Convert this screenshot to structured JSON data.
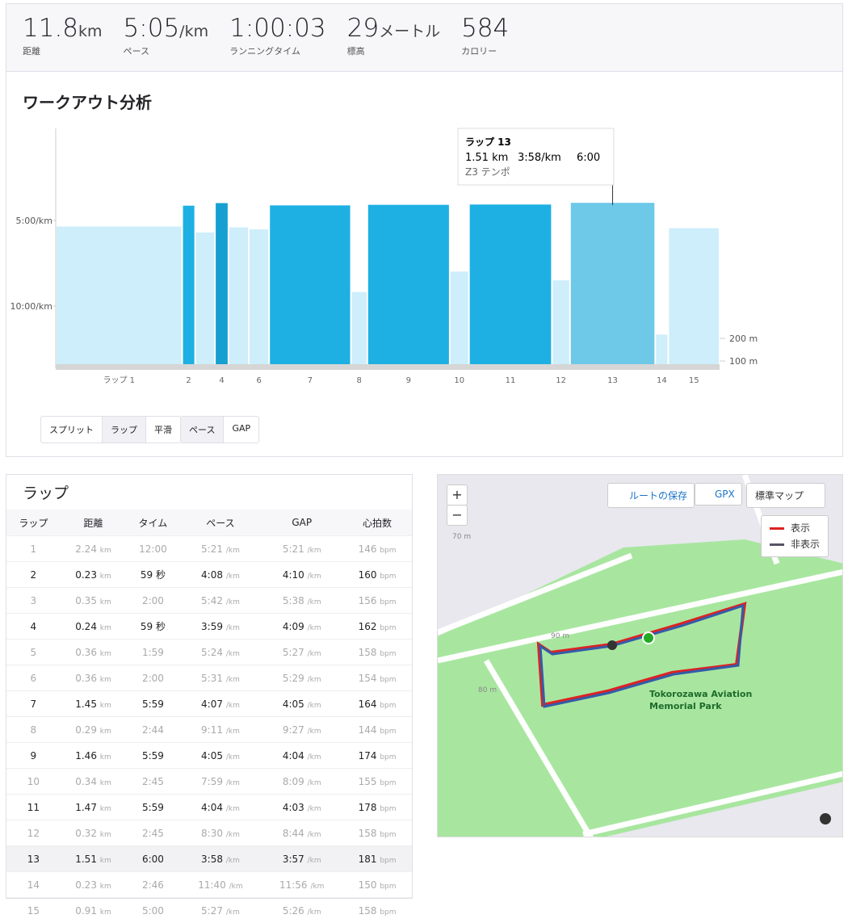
{
  "stats": [
    {
      "value": "11.8",
      "unit": "km",
      "label": "距離"
    },
    {
      "value": "5:05",
      "unit": "/km",
      "label": "ペース"
    },
    {
      "value": "1:00:03",
      "label": "ランニングタイム"
    },
    {
      "value": "29",
      "unit": "メートル",
      "label": "標高"
    },
    {
      "value": "584",
      "label": "カロリー"
    }
  ],
  "analysis": {
    "title": "ワークアウト分析",
    "view_buttons": [
      "スプリット",
      "ラップ",
      "平滑"
    ],
    "metric_buttons": [
      "ペース",
      "GAP"
    ]
  },
  "chart_data": {
    "type": "bar",
    "categories": [
      "ラップ 1",
      "2",
      "3",
      "4",
      "5",
      "6",
      "7",
      "8",
      "9",
      "10",
      "11",
      "12",
      "13",
      "14",
      "15"
    ],
    "x_labels": [
      "ラップ 1",
      "2",
      null,
      "4",
      null,
      "6",
      "7",
      "8",
      "9",
      "10",
      "11",
      "12",
      "13",
      "14",
      "15"
    ],
    "distances": [
      2.24,
      0.23,
      0.35,
      0.24,
      0.36,
      0.36,
      1.45,
      0.29,
      1.46,
      0.34,
      1.47,
      0.32,
      1.51,
      0.23,
      0.91
    ],
    "values": [
      321,
      248,
      342,
      239,
      324,
      331,
      247,
      551,
      245,
      479,
      244,
      510,
      238,
      700,
      327
    ],
    "colors": [
      "#cdeefa",
      "#1eb0e3",
      "#cdeefa",
      "#169fd1",
      "#cdeefa",
      "#cdeefa",
      "#1eb0e3",
      "#cdeefa",
      "#1eb0e3",
      "#cdeefa",
      "#1eb0e3",
      "#cdeefa",
      "#6ec8e8",
      "#cdeefa",
      "#cdeefa"
    ],
    "ylim": [
      818,
      -23
    ],
    "yticks": [
      {
        "value": 300,
        "label": "5:00/km"
      },
      {
        "value": 600,
        "label": "10:00/km"
      }
    ],
    "y2lim": [
      68,
      1129
    ],
    "y2ticks": [
      {
        "value": 100,
        "label": "100 m"
      },
      {
        "value": 200,
        "label": "200 m"
      }
    ],
    "tooltip": {
      "title": "ラップ 13",
      "distance": "1.51 km",
      "pace": "3:58/km",
      "time": "6:00",
      "zone": "Z3 テンポ"
    }
  },
  "table": {
    "title": "ラップ",
    "headers": [
      "ラップ",
      "距離",
      "タイム",
      "ペース",
      "GAP",
      "心拍数"
    ],
    "units": {
      "distance": "km",
      "pace": "/km",
      "hr": "bpm"
    },
    "rows": [
      [
        "1",
        "2.24",
        "12:00",
        "5:21",
        "5:21",
        "146"
      ],
      [
        "2",
        "0.23",
        "59 秒",
        "4:08",
        "4:10",
        "160"
      ],
      [
        "3",
        "0.35",
        "2:00",
        "5:42",
        "5:38",
        "156"
      ],
      [
        "4",
        "0.24",
        "59 秒",
        "3:59",
        "4:09",
        "162"
      ],
      [
        "5",
        "0.36",
        "1:59",
        "5:24",
        "5:27",
        "158"
      ],
      [
        "6",
        "0.36",
        "2:00",
        "5:31",
        "5:29",
        "154"
      ],
      [
        "7",
        "1.45",
        "5:59",
        "4:07",
        "4:05",
        "164"
      ],
      [
        "8",
        "0.29",
        "2:44",
        "9:11",
        "9:27",
        "144"
      ],
      [
        "9",
        "1.46",
        "5:59",
        "4:05",
        "4:04",
        "174"
      ],
      [
        "10",
        "0.34",
        "2:45",
        "7:59",
        "8:09",
        "155"
      ],
      [
        "11",
        "1.47",
        "5:59",
        "4:04",
        "4:03",
        "178"
      ],
      [
        "12",
        "0.32",
        "2:45",
        "8:30",
        "8:44",
        "158"
      ],
      [
        "13",
        "1.51",
        "6:00",
        "3:58",
        "3:57",
        "181"
      ],
      [
        "14",
        "0.23",
        "2:46",
        "11:40",
        "11:56",
        "150"
      ],
      [
        "15",
        "0.91",
        "5:00",
        "5:27",
        "5:26",
        "158"
      ]
    ]
  },
  "map": {
    "zoom_in": "+",
    "zoom_out": "−",
    "save_route": "ルートの保存",
    "gpx": "GPX",
    "map_style": "標準マップ",
    "legend": [
      "表示",
      "非表示"
    ],
    "park_name": [
      "Tokorozawa Aviation",
      "Memorial Park"
    ],
    "contours": [
      "90 m",
      "70 m",
      "80 m"
    ]
  }
}
